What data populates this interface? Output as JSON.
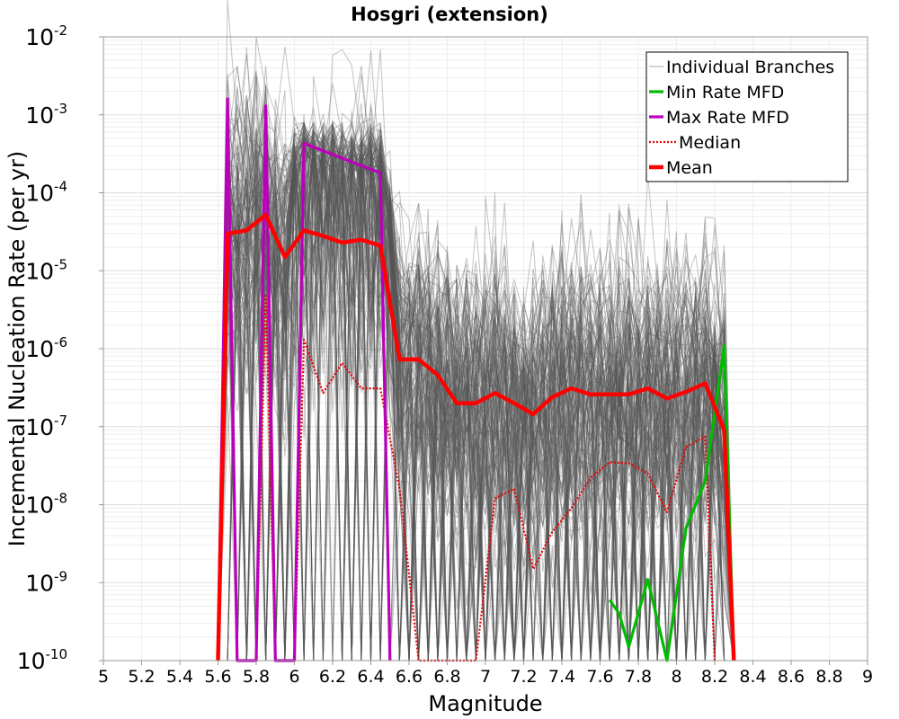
{
  "chart_data": {
    "type": "line",
    "title": "Hosgri (extension)",
    "xlabel": "Magnitude",
    "ylabel": "Incremental Nucleation Rate (per yr)",
    "xlim": [
      5,
      9
    ],
    "ylim": [
      1e-10,
      0.01
    ],
    "yscale": "log",
    "grid": true,
    "legend_position": "top-right",
    "x_ticks": [
      "5",
      "5.2",
      "5.4",
      "5.6",
      "5.8",
      "6",
      "6.2",
      "6.4",
      "6.6",
      "6.8",
      "7",
      "7.2",
      "7.4",
      "7.6",
      "7.8",
      "8",
      "8.2",
      "8.4",
      "8.6",
      "8.8",
      "9"
    ],
    "y_ticks": [
      {
        "base": "10",
        "exp": "-10"
      },
      {
        "base": "10",
        "exp": "-9"
      },
      {
        "base": "10",
        "exp": "-8"
      },
      {
        "base": "10",
        "exp": "-7"
      },
      {
        "base": "10",
        "exp": "-6"
      },
      {
        "base": "10",
        "exp": "-5"
      },
      {
        "base": "10",
        "exp": "-4"
      },
      {
        "base": "10",
        "exp": "-3"
      },
      {
        "base": "10",
        "exp": "-2"
      }
    ],
    "legend": [
      "Individual Branches",
      "Min Rate MFD",
      "Max Rate MFD",
      "Median",
      "Mean"
    ],
    "colors": {
      "branches": "#555555",
      "min": "#00bb00",
      "max": "#bb00bb",
      "median": "#ee0000",
      "mean": "#ff0000"
    },
    "series": [
      {
        "name": "Mean",
        "style": "thick-solid",
        "x": [
          5.6,
          5.65,
          5.75,
          5.85,
          5.95,
          6.05,
          6.15,
          6.25,
          6.35,
          6.45,
          6.55,
          6.65,
          6.75,
          6.85,
          6.95,
          7.05,
          7.15,
          7.25,
          7.35,
          7.45,
          7.55,
          7.65,
          7.75,
          7.85,
          7.95,
          8.05,
          8.15,
          8.25,
          8.3
        ],
        "y": [
          1e-10,
          3e-05,
          3.3e-05,
          5.2e-05,
          1.5e-05,
          3.3e-05,
          2.8e-05,
          2.3e-05,
          2.5e-05,
          2.1e-05,
          7.3e-07,
          7.3e-07,
          4.6e-07,
          2e-07,
          2e-07,
          2.7e-07,
          2e-07,
          1.45e-07,
          2.4e-07,
          3.1e-07,
          2.6e-07,
          2.6e-07,
          2.6e-07,
          3.1e-07,
          2.3e-07,
          2.8e-07,
          3.6e-07,
          9e-08,
          1e-10
        ]
      },
      {
        "name": "Median",
        "style": "dotted",
        "x": [
          5.6,
          5.65,
          5.7,
          5.8,
          5.85,
          5.9,
          6.0,
          6.05,
          6.15,
          6.25,
          6.35,
          6.45,
          6.55,
          6.65,
          6.95,
          7.05,
          7.15,
          7.25,
          7.35,
          7.45,
          7.55,
          7.65,
          7.75,
          7.85,
          7.95,
          8.05,
          8.15,
          8.2
        ],
        "y": [
          1e-10,
          0.0016,
          1e-10,
          1e-10,
          5e-06,
          1e-10,
          1e-10,
          1.3e-06,
          2.7e-07,
          6.6e-07,
          3.1e-07,
          3.1e-07,
          1.6e-08,
          1e-10,
          1e-10,
          1.2e-08,
          1.6e-08,
          1.5e-09,
          4.5e-09,
          9e-09,
          2.2e-08,
          3.5e-08,
          3.4e-08,
          2.5e-08,
          8e-09,
          5.5e-08,
          7.5e-08,
          1e-10
        ]
      },
      {
        "name": "Max Rate MFD",
        "style": "solid",
        "x": [
          5.6,
          5.65,
          5.7,
          5.8,
          5.85,
          5.9,
          6.0,
          6.05,
          6.45,
          6.5
        ],
        "y": [
          1e-10,
          0.0016,
          1e-10,
          1e-10,
          0.0013,
          1e-10,
          1e-10,
          0.00043,
          0.00018,
          1e-10
        ]
      },
      {
        "name": "Min Rate MFD",
        "style": "solid",
        "x": [
          7.65,
          7.7,
          7.75,
          7.85,
          7.95,
          8.05,
          8.15,
          8.25,
          8.3
        ],
        "y": [
          6e-10,
          4e-10,
          1.5e-10,
          1.1e-09,
          1e-10,
          5e-09,
          2e-08,
          1.1e-06,
          1e-10
        ]
      }
    ]
  }
}
